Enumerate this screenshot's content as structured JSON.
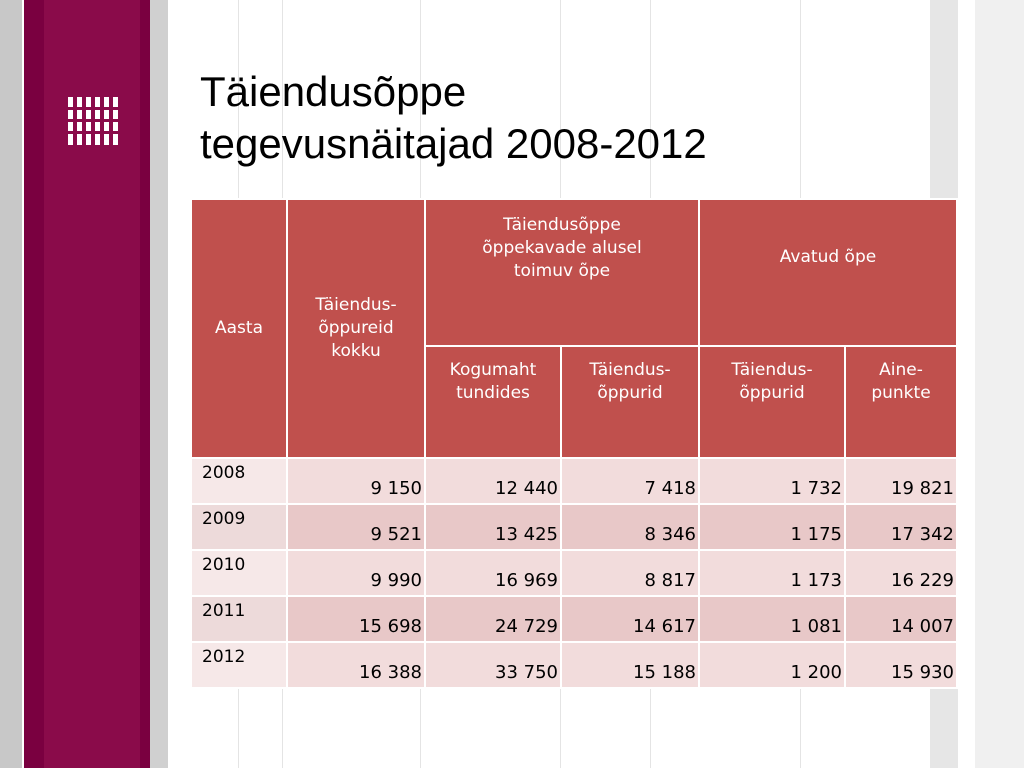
{
  "title": {
    "line1": "Täiendusõppe",
    "line2": "tegevusnäitajad 2008-2012"
  },
  "table": {
    "headers": {
      "year": "Aasta",
      "total_learners": "Täiendus-õppureid kokku",
      "curriculum_group": "Täiendusõppe õppekavade alusel toimuv õpe",
      "open_group": "Avatud õpe",
      "volume_hours": "Kogumaht tundides",
      "learners_1": "Täiendus-õppurid",
      "learners_2": "Täiendus-õppurid",
      "credits": "Aine-punkte"
    },
    "rows": [
      {
        "year": "2008",
        "total": "9 150",
        "hours": "12 440",
        "learners": "7 418",
        "open_learners": "1 732",
        "credits": "19 821"
      },
      {
        "year": "2009",
        "total": "9 521",
        "hours": "13 425",
        "learners": "8 346",
        "open_learners": "1 175",
        "credits": "17 342"
      },
      {
        "year": "2010",
        "total": "9 990",
        "hours": "16 969",
        "learners": "8 817",
        "open_learners": "1 173",
        "credits": "16 229"
      },
      {
        "year": "2011",
        "total": "15 698",
        "hours": "24 729",
        "learners": "14 617",
        "open_learners": "1 081",
        "credits": "14 007"
      },
      {
        "year": "2012",
        "total": "16 388",
        "hours": "33 750",
        "learners": "15 188",
        "open_learners": "1 200",
        "credits": "15 930"
      }
    ]
  },
  "colors": {
    "header_bg": "#c0504d",
    "sidebar": "#8a0b4a",
    "row_light": "#f2dcdc",
    "row_dark": "#e8c8c8"
  }
}
